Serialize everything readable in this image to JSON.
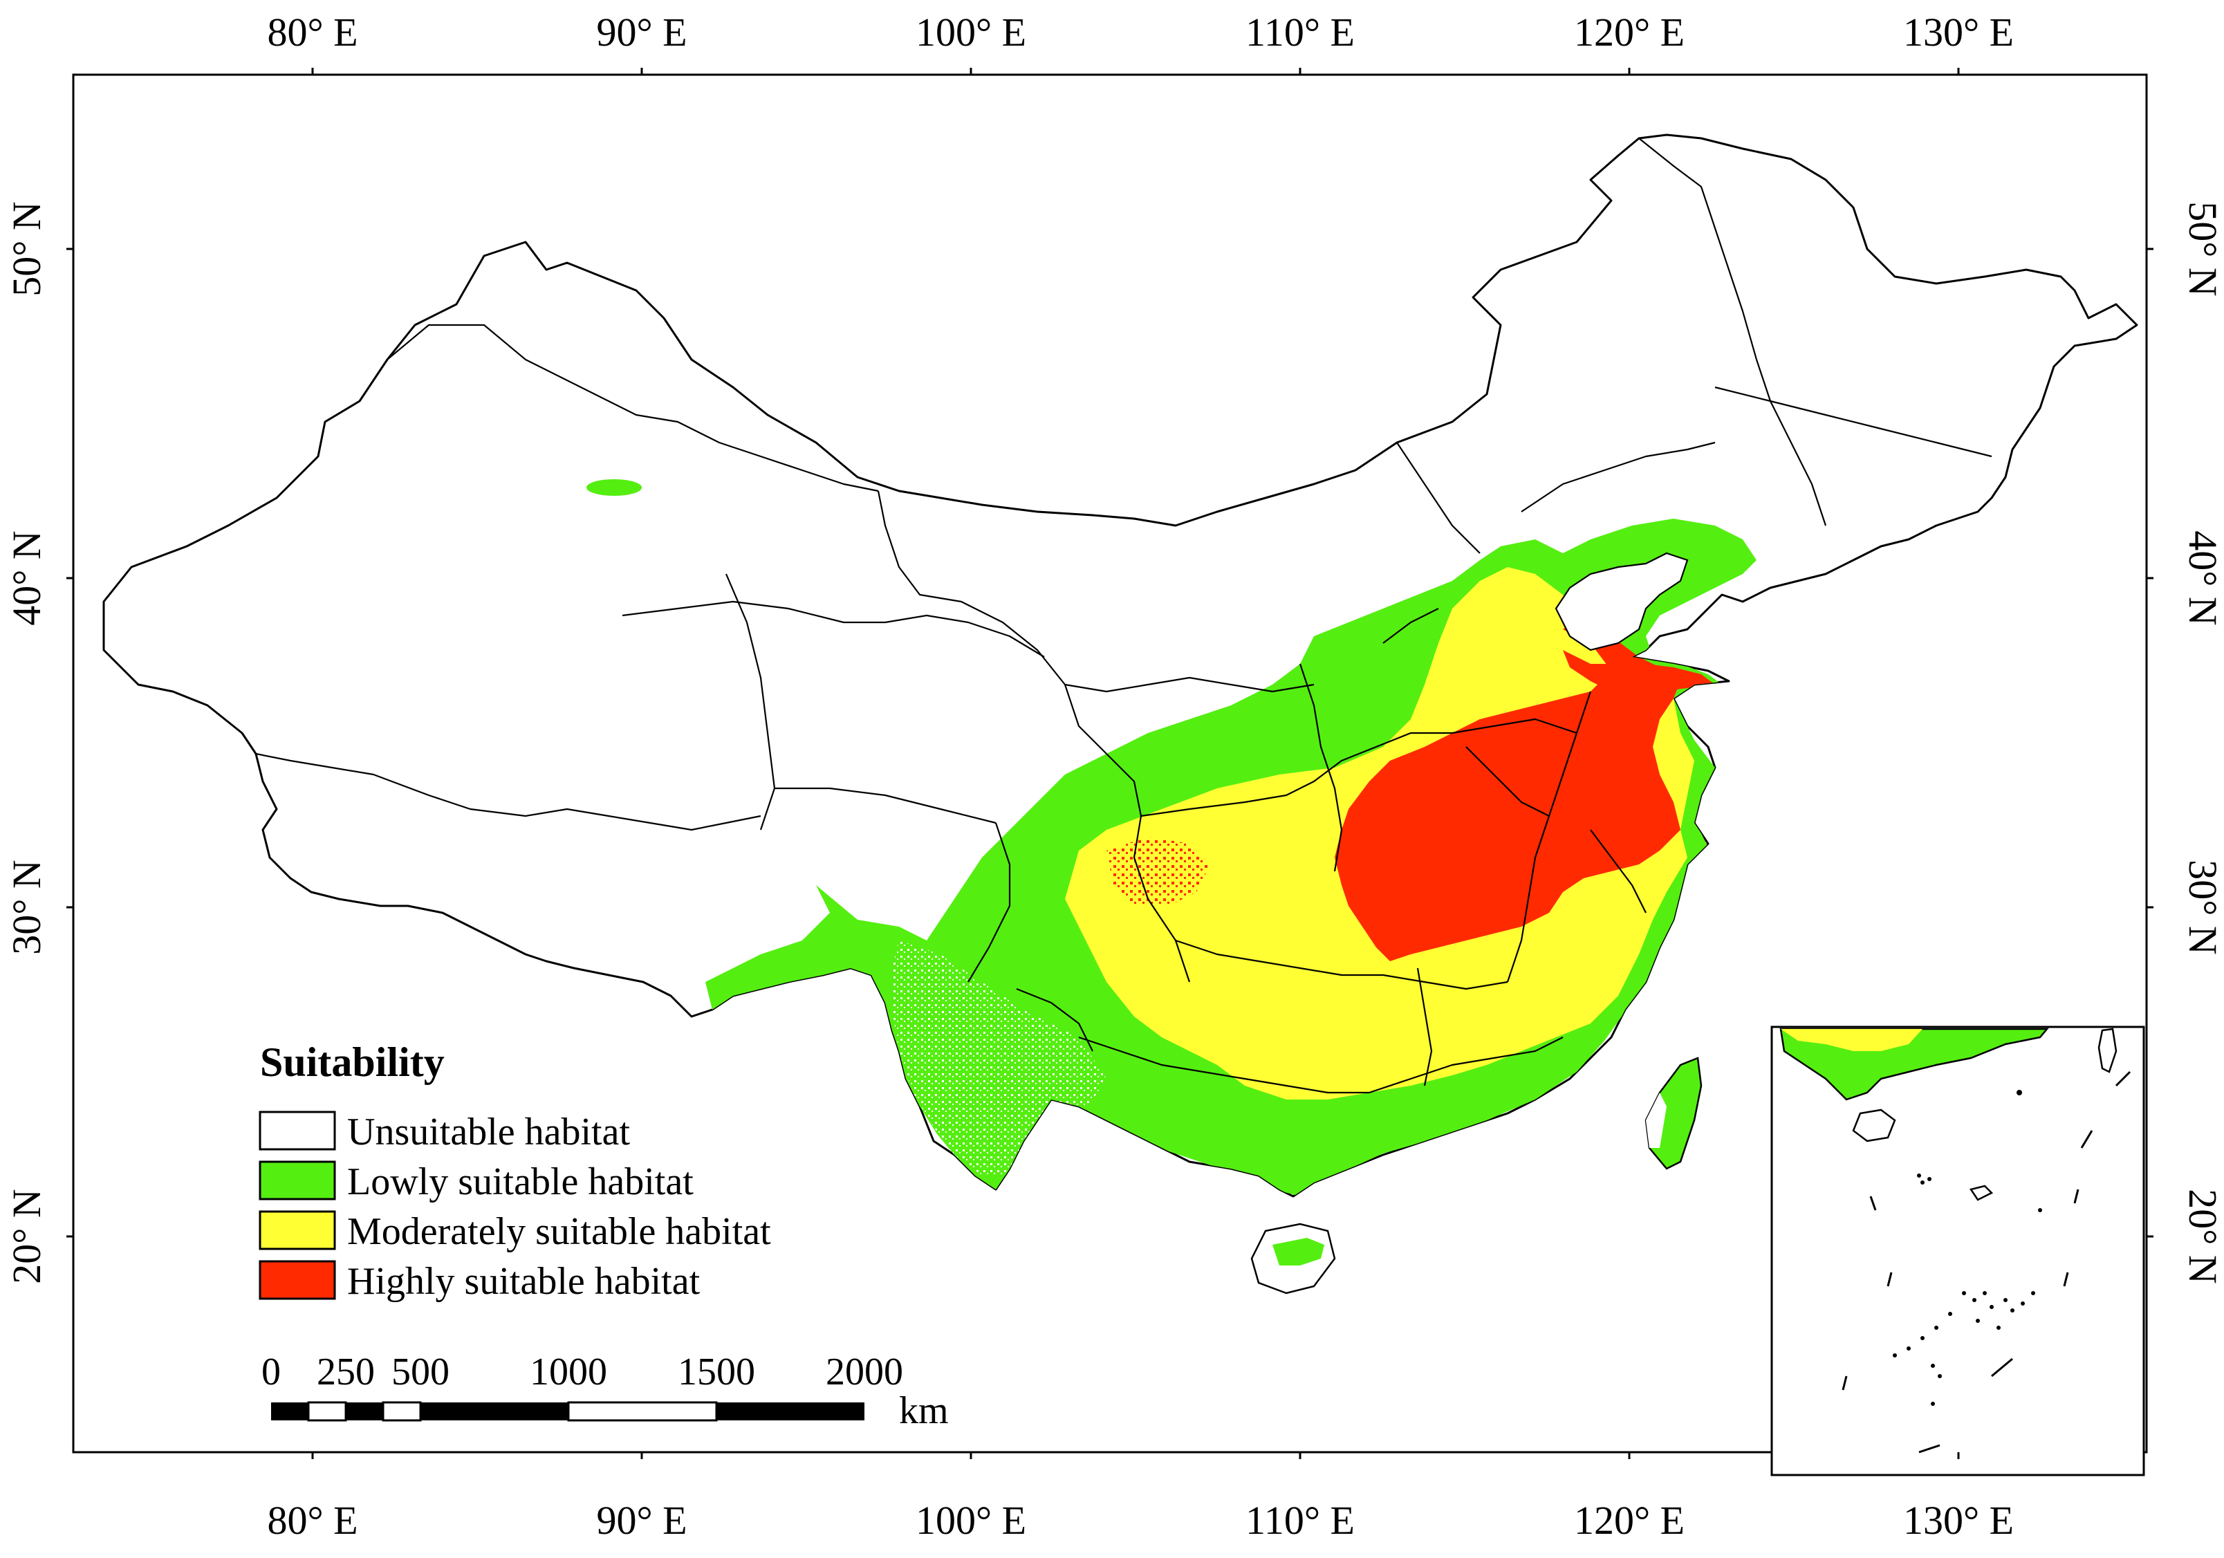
{
  "axes": {
    "longitude_labels": [
      "80° E",
      "90° E",
      "100° E",
      "110° E",
      "120° E",
      "130° E"
    ],
    "latitude_labels": [
      "50° N",
      "40° N",
      "30° N",
      "20° N"
    ]
  },
  "legend": {
    "title": "Suitability",
    "items": [
      {
        "label": "Unsuitable habitat",
        "color": "#ffffff"
      },
      {
        "label": "Lowly suitable habitat",
        "color": "#55ee11"
      },
      {
        "label": "Moderately suitable habitat",
        "color": "#ffff33"
      },
      {
        "label": "Highly suitable habitat",
        "color": "#ff2a00"
      }
    ]
  },
  "scale_bar": {
    "ticks": [
      "0",
      "250",
      "500",
      "1000",
      "1500",
      "2000"
    ],
    "unit": "km"
  },
  "colors": {
    "unsuitable": "#ffffff",
    "low": "#55ee11",
    "moderate": "#ffff33",
    "high": "#ff2a00"
  }
}
